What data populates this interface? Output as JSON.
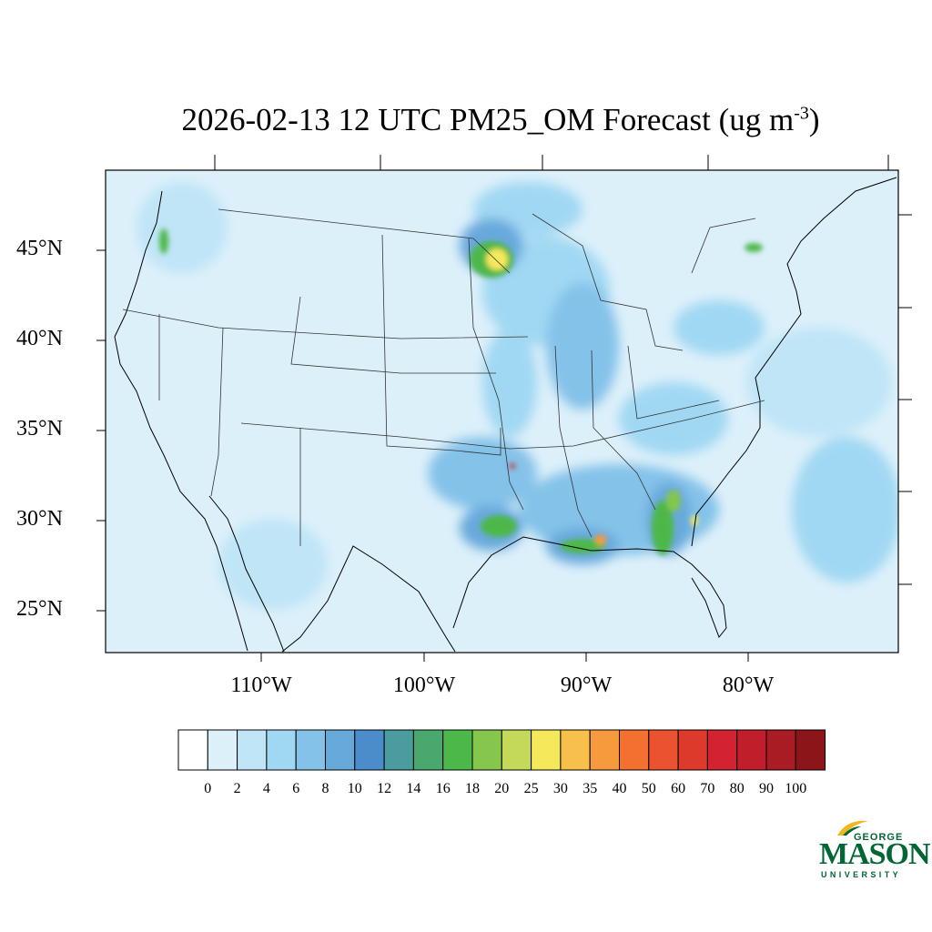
{
  "title": {
    "main": "2026-02-13 12 UTC PM25_OM Forecast (ug m",
    "exponent": "-3",
    "close": ")"
  },
  "map": {
    "lat_labels": [
      "45°N",
      "40°N",
      "35°N",
      "30°N",
      "25°N"
    ],
    "lon_labels": [
      "110°W",
      "100°W",
      "90°W",
      "80°W"
    ],
    "background_color": "#dcf0fa"
  },
  "colorbar": {
    "labels": [
      "0",
      "2",
      "4",
      "6",
      "8",
      "10",
      "12",
      "14",
      "16",
      "18",
      "20",
      "25",
      "30",
      "35",
      "40",
      "50",
      "60",
      "70",
      "80",
      "90",
      "100"
    ],
    "colors": [
      "#ffffff",
      "#dcf0fa",
      "#bfe5f7",
      "#a0d8f3",
      "#84c2e9",
      "#68a9dc",
      "#4b8ccb",
      "#4a9c9e",
      "#4aa86e",
      "#4db84a",
      "#85c64c",
      "#c4d85a",
      "#f6e85b",
      "#f8c04b",
      "#f79a3d",
      "#f47030",
      "#eb5230",
      "#de3a2c",
      "#d32230",
      "#c01e2a",
      "#a91c24",
      "#8b1518"
    ]
  },
  "logo": {
    "line1": "GEORGE",
    "line2": "MASON",
    "line3": "UNIVERSITY"
  }
}
